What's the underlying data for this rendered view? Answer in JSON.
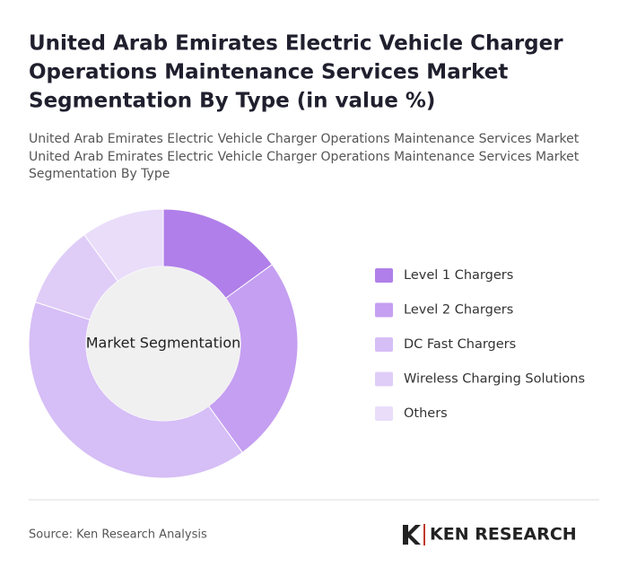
{
  "chart_data": {
    "type": "donut",
    "title": [
      "United Arab Emirates Electric Vehicle Charger",
      "Operations Maintenance Services Market",
      "Segmentation By Type (in value %)"
    ],
    "subtitle": [
      "United Arab Emirates Electric Vehicle Charger Operations Maintenance Services Market",
      "United Arab Emirates Electric Vehicle Charger Operations Maintenance Services Market",
      "Segmentation By Type"
    ],
    "center_label": "Market Segmentation",
    "categories": [
      "Level 1 Chargers",
      "Level 2 Chargers",
      "DC Fast Chargers",
      "Wireless Charging Solutions",
      "Others"
    ],
    "values": [
      15,
      25,
      40,
      10,
      10
    ],
    "colors": [
      "#b07fe9",
      "#c59ff1",
      "#d6bef6",
      "#dfcdf7",
      "#e9ddfa"
    ],
    "source": "Source: Ken Research Analysis",
    "brand": "KEN RESEARCH"
  }
}
